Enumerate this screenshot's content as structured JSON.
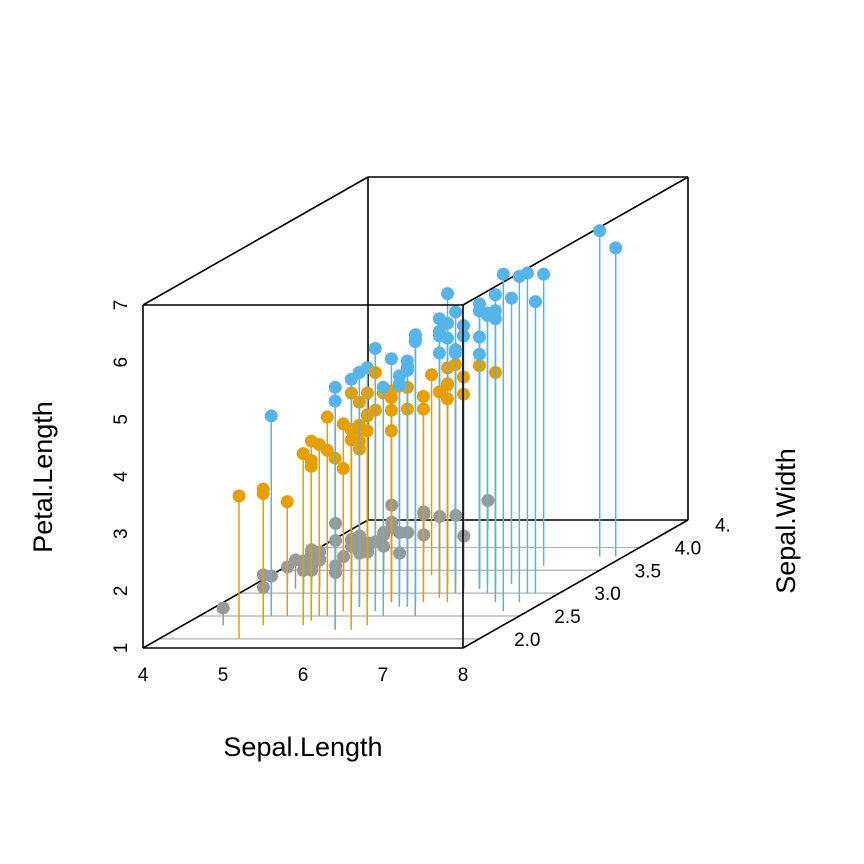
{
  "chart_data": {
    "type": "scatter",
    "subtype": "3d-scatter-with-drop-lines",
    "title": "",
    "xlabel": "Sepal.Length",
    "ylabel": "Sepal.Width",
    "zlabel": "Petal.Length",
    "xlim": [
      4,
      8
    ],
    "ylim": [
      1.8,
      4.6
    ],
    "zlim": [
      1,
      7
    ],
    "x_ticks": [
      "4",
      "5",
      "6",
      "7",
      "8"
    ],
    "y_ticks": [
      "2.0",
      "2.5",
      "3.0",
      "3.5",
      "4.0",
      "4."
    ],
    "z_ticks": [
      "1",
      "2",
      "3",
      "4",
      "5",
      "6",
      "7"
    ],
    "grid_floor": true,
    "drop_lines": true,
    "legend": "none",
    "colors": {
      "setosa": "#999999",
      "versicolor": "#E69F00",
      "virginica": "#56B4E9"
    },
    "series": [
      {
        "name": "",
        "color_key": "setosa",
        "points": [
          [
            5.1,
            3.5,
            1.4
          ],
          [
            4.9,
            3.0,
            1.4
          ],
          [
            4.7,
            3.2,
            1.3
          ],
          [
            4.6,
            3.1,
            1.5
          ],
          [
            5.0,
            3.6,
            1.4
          ],
          [
            5.4,
            3.9,
            1.7
          ],
          [
            4.6,
            3.4,
            1.4
          ],
          [
            5.0,
            3.4,
            1.5
          ],
          [
            4.4,
            2.9,
            1.4
          ],
          [
            4.9,
            3.1,
            1.5
          ],
          [
            5.4,
            3.7,
            1.5
          ],
          [
            4.8,
            3.4,
            1.6
          ],
          [
            4.8,
            3.0,
            1.4
          ],
          [
            4.3,
            3.0,
            1.1
          ],
          [
            5.8,
            4.0,
            1.2
          ],
          [
            5.7,
            4.4,
            1.5
          ],
          [
            5.4,
            3.9,
            1.3
          ],
          [
            5.1,
            3.5,
            1.4
          ],
          [
            5.7,
            3.8,
            1.7
          ],
          [
            5.1,
            3.8,
            1.5
          ],
          [
            5.4,
            3.4,
            1.7
          ],
          [
            5.1,
            3.7,
            1.5
          ],
          [
            4.6,
            3.6,
            1.0
          ],
          [
            5.1,
            3.3,
            1.7
          ],
          [
            4.8,
            3.4,
            1.9
          ],
          [
            5.0,
            3.0,
            1.6
          ],
          [
            5.0,
            3.4,
            1.6
          ],
          [
            5.2,
            3.5,
            1.5
          ],
          [
            5.2,
            3.4,
            1.4
          ],
          [
            4.7,
            3.2,
            1.6
          ],
          [
            4.8,
            3.1,
            1.6
          ],
          [
            5.4,
            3.4,
            1.5
          ],
          [
            5.2,
            4.1,
            1.5
          ],
          [
            5.5,
            4.2,
            1.4
          ],
          [
            4.9,
            3.1,
            1.5
          ],
          [
            5.0,
            3.2,
            1.2
          ],
          [
            5.5,
            3.5,
            1.3
          ],
          [
            4.9,
            3.6,
            1.4
          ],
          [
            4.4,
            3.0,
            1.3
          ],
          [
            5.1,
            3.4,
            1.5
          ],
          [
            5.0,
            3.5,
            1.3
          ],
          [
            4.5,
            2.3,
            1.3
          ],
          [
            4.4,
            3.2,
            1.3
          ],
          [
            5.0,
            3.5,
            1.6
          ],
          [
            5.1,
            3.8,
            1.9
          ],
          [
            4.8,
            3.0,
            1.4
          ],
          [
            5.1,
            3.8,
            1.6
          ],
          [
            4.6,
            3.2,
            1.4
          ],
          [
            5.3,
            3.7,
            1.5
          ],
          [
            5.0,
            3.3,
            1.4
          ]
        ]
      },
      {
        "name": "",
        "color_key": "versicolor",
        "points": [
          [
            7.0,
            3.2,
            4.7
          ],
          [
            6.4,
            3.2,
            4.5
          ],
          [
            6.9,
            3.1,
            4.9
          ],
          [
            5.5,
            2.3,
            4.0
          ],
          [
            6.5,
            2.8,
            4.6
          ],
          [
            5.7,
            2.8,
            4.5
          ],
          [
            6.3,
            3.3,
            4.7
          ],
          [
            4.9,
            2.4,
            3.3
          ],
          [
            6.6,
            2.9,
            4.6
          ],
          [
            5.2,
            2.7,
            3.9
          ],
          [
            5.0,
            2.0,
            3.5
          ],
          [
            5.9,
            3.0,
            4.2
          ],
          [
            6.0,
            2.2,
            4.0
          ],
          [
            6.1,
            2.9,
            4.7
          ],
          [
            5.6,
            2.9,
            3.6
          ],
          [
            6.7,
            3.1,
            4.4
          ],
          [
            5.6,
            3.0,
            4.5
          ],
          [
            5.8,
            2.7,
            4.1
          ],
          [
            6.2,
            2.2,
            4.5
          ],
          [
            5.6,
            2.5,
            3.9
          ],
          [
            5.9,
            3.2,
            4.8
          ],
          [
            6.1,
            2.8,
            4.0
          ],
          [
            6.3,
            2.5,
            4.9
          ],
          [
            6.1,
            2.8,
            4.7
          ],
          [
            6.4,
            2.9,
            4.3
          ],
          [
            6.6,
            3.0,
            4.4
          ],
          [
            6.8,
            2.8,
            4.8
          ],
          [
            6.7,
            3.0,
            5.0
          ],
          [
            6.0,
            2.9,
            4.5
          ],
          [
            5.7,
            2.6,
            3.5
          ],
          [
            5.5,
            2.4,
            3.8
          ],
          [
            5.5,
            2.4,
            3.7
          ],
          [
            5.8,
            2.7,
            3.9
          ],
          [
            6.0,
            2.7,
            5.1
          ],
          [
            5.4,
            3.0,
            4.5
          ],
          [
            6.0,
            3.4,
            4.5
          ],
          [
            6.7,
            3.1,
            4.7
          ],
          [
            6.3,
            2.3,
            4.4
          ],
          [
            5.6,
            3.0,
            4.1
          ],
          [
            5.5,
            2.5,
            4.0
          ],
          [
            5.5,
            2.6,
            4.4
          ],
          [
            6.1,
            3.0,
            4.6
          ],
          [
            5.8,
            2.6,
            4.0
          ],
          [
            5.0,
            2.3,
            3.3
          ],
          [
            5.6,
            2.7,
            4.2
          ],
          [
            5.7,
            3.0,
            4.2
          ],
          [
            5.7,
            2.9,
            4.2
          ],
          [
            6.2,
            2.9,
            4.3
          ],
          [
            5.1,
            2.5,
            3.0
          ],
          [
            5.7,
            2.8,
            4.1
          ]
        ]
      },
      {
        "name": "",
        "color_key": "virginica",
        "points": [
          [
            6.3,
            3.3,
            6.0
          ],
          [
            5.8,
            2.7,
            5.1
          ],
          [
            7.1,
            3.0,
            5.9
          ],
          [
            6.3,
            2.9,
            5.6
          ],
          [
            6.5,
            3.0,
            5.8
          ],
          [
            7.6,
            3.0,
            6.6
          ],
          [
            4.9,
            2.5,
            4.5
          ],
          [
            7.3,
            2.9,
            6.3
          ],
          [
            6.7,
            2.5,
            5.8
          ],
          [
            7.2,
            3.6,
            6.1
          ],
          [
            6.5,
            3.2,
            5.1
          ],
          [
            6.4,
            2.7,
            5.3
          ],
          [
            6.8,
            3.0,
            5.5
          ],
          [
            5.7,
            2.5,
            5.0
          ],
          [
            5.8,
            2.8,
            5.1
          ],
          [
            6.4,
            3.2,
            5.3
          ],
          [
            6.5,
            3.0,
            5.5
          ],
          [
            7.7,
            3.8,
            6.7
          ],
          [
            7.7,
            2.6,
            6.9
          ],
          [
            6.0,
            2.2,
            5.0
          ],
          [
            6.9,
            3.2,
            5.7
          ],
          [
            5.6,
            2.8,
            4.9
          ],
          [
            7.7,
            2.8,
            6.7
          ],
          [
            6.3,
            2.7,
            4.9
          ],
          [
            6.7,
            3.3,
            5.7
          ],
          [
            7.2,
            3.2,
            6.0
          ],
          [
            6.2,
            2.8,
            4.8
          ],
          [
            6.1,
            3.0,
            4.9
          ],
          [
            6.4,
            2.8,
            5.6
          ],
          [
            7.2,
            3.0,
            5.8
          ],
          [
            7.4,
            2.8,
            6.1
          ],
          [
            7.9,
            3.8,
            6.4
          ],
          [
            6.4,
            2.8,
            5.6
          ],
          [
            6.3,
            2.8,
            5.1
          ],
          [
            6.1,
            2.6,
            5.6
          ],
          [
            7.7,
            3.0,
            6.1
          ],
          [
            6.3,
            3.4,
            5.6
          ],
          [
            6.4,
            3.1,
            5.5
          ],
          [
            6.0,
            3.0,
            4.8
          ],
          [
            6.9,
            3.1,
            5.4
          ],
          [
            6.7,
            3.1,
            5.6
          ],
          [
            6.9,
            3.1,
            5.1
          ],
          [
            5.8,
            2.7,
            5.1
          ],
          [
            6.8,
            3.2,
            5.9
          ],
          [
            6.7,
            3.3,
            5.7
          ],
          [
            6.7,
            3.0,
            5.2
          ],
          [
            6.3,
            2.5,
            5.0
          ],
          [
            6.5,
            3.0,
            5.2
          ],
          [
            6.2,
            3.4,
            5.4
          ],
          [
            5.9,
            3.0,
            5.1
          ]
        ]
      }
    ]
  }
}
